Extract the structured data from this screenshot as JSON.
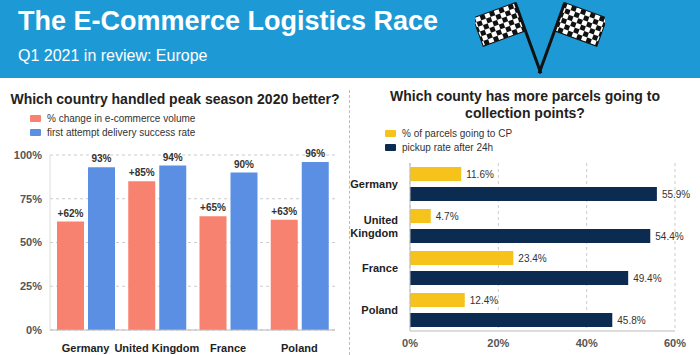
{
  "header": {
    "title": "The E-Commerce Logistics Race",
    "subtitle": "Q1 2021 in review: Europe"
  },
  "chart_data": [
    {
      "type": "bar",
      "title": "Which country handled peak season 2020 better?",
      "categories": [
        "Germany",
        "United Kingdom",
        "France",
        "Poland"
      ],
      "series": [
        {
          "name": "% change in e-commerce volume",
          "color": "#f7826f",
          "values": [
            62,
            85,
            65,
            63
          ],
          "value_labels": [
            "+62%",
            "+85%",
            "+65%",
            "+63%"
          ]
        },
        {
          "name": "first attempt delivery success rate",
          "color": "#5b8fe4",
          "values": [
            93,
            94,
            90,
            96
          ],
          "value_labels": [
            "93%",
            "94%",
            "90%",
            "96%"
          ]
        }
      ],
      "ylim": [
        0,
        100
      ],
      "yticks": [
        {
          "value": 0,
          "label": "0%"
        },
        {
          "value": 25,
          "label": "25%"
        },
        {
          "value": 50,
          "label": "50%"
        },
        {
          "value": 75,
          "label": "75%"
        },
        {
          "value": 100,
          "label": "100%"
        }
      ],
      "grid": true,
      "data_labels": true
    },
    {
      "type": "bar",
      "orientation": "horizontal",
      "title": "Which county has more parcels going to collection points?",
      "categories": [
        "Germany",
        "United Kingdom",
        "France",
        "Poland"
      ],
      "series": [
        {
          "name": "% of parcels going to CP",
          "color": "#f5c31c",
          "values": [
            11.6,
            4.7,
            23.4,
            12.4
          ],
          "value_labels": [
            "11.6%",
            "4.7%",
            "23.4%",
            "12.4%"
          ]
        },
        {
          "name": "pickup rate after 24h",
          "color": "#0c2b50",
          "values": [
            55.9,
            54.4,
            49.4,
            45.8
          ],
          "value_labels": [
            "55.9%",
            "54.4%",
            "49.4%",
            "45.8%"
          ]
        }
      ],
      "xlim": [
        0,
        60
      ],
      "xticks": [
        {
          "value": 0,
          "label": "0%"
        },
        {
          "value": 20,
          "label": "20%"
        },
        {
          "value": 40,
          "label": "40%"
        },
        {
          "value": 60,
          "label": "60%"
        }
      ],
      "grid": true,
      "data_labels": true
    }
  ]
}
